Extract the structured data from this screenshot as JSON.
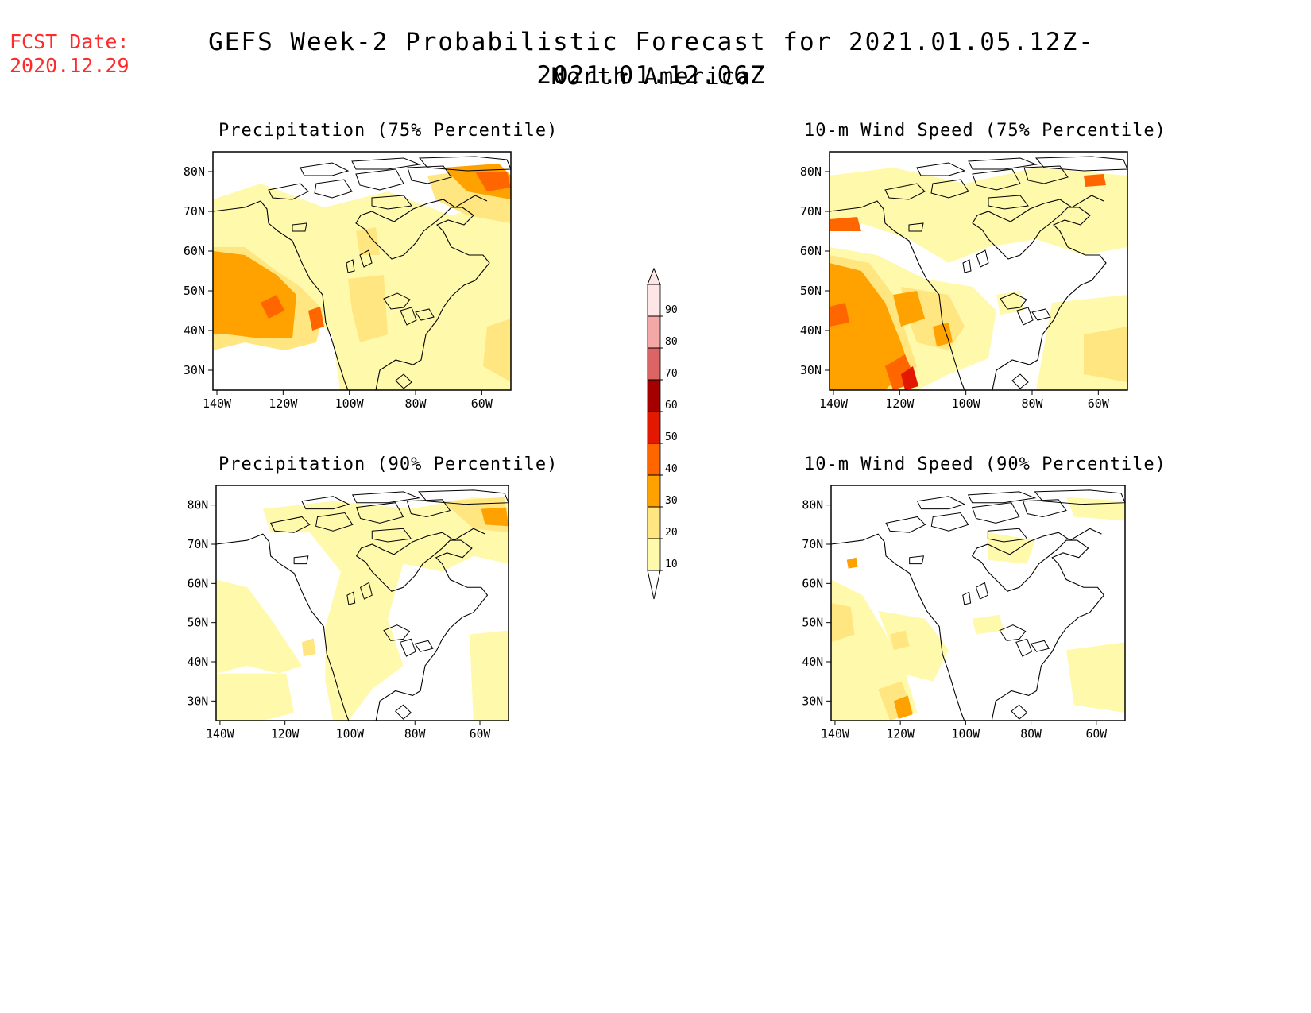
{
  "header": {
    "fcst_label": "FCST Date:",
    "fcst_date": "2020.12.29",
    "title": "GEFS Week-2 Probabilistic Forecast for 2021.01.05.12Z-2021.01.12.06Z",
    "region": "North America"
  },
  "axes": {
    "lat_labels": [
      "80N",
      "70N",
      "60N",
      "50N",
      "40N",
      "30N"
    ],
    "lon_labels": [
      "140W",
      "120W",
      "100W",
      "80W",
      "60W"
    ]
  },
  "colorbar": {
    "levels": [
      "10",
      "20",
      "30",
      "40",
      "50",
      "60",
      "70",
      "80",
      "90"
    ],
    "colors": [
      "#fff9ac",
      "#ffe680",
      "#ffa200",
      "#ff6600",
      "#e21800",
      "#a50000",
      "#dc6464",
      "#f4a7a7",
      "#ffe6e6"
    ]
  },
  "panels": [
    {
      "id": "precip75",
      "title": "Precipitation (75% Percentile)"
    },
    {
      "id": "wind75",
      "title": "10-m Wind Speed (75% Percentile)"
    },
    {
      "id": "precip90",
      "title": "Precipitation (90% Percentile)"
    },
    {
      "id": "wind90",
      "title": "10-m Wind Speed (90% Percentile)"
    }
  ]
}
